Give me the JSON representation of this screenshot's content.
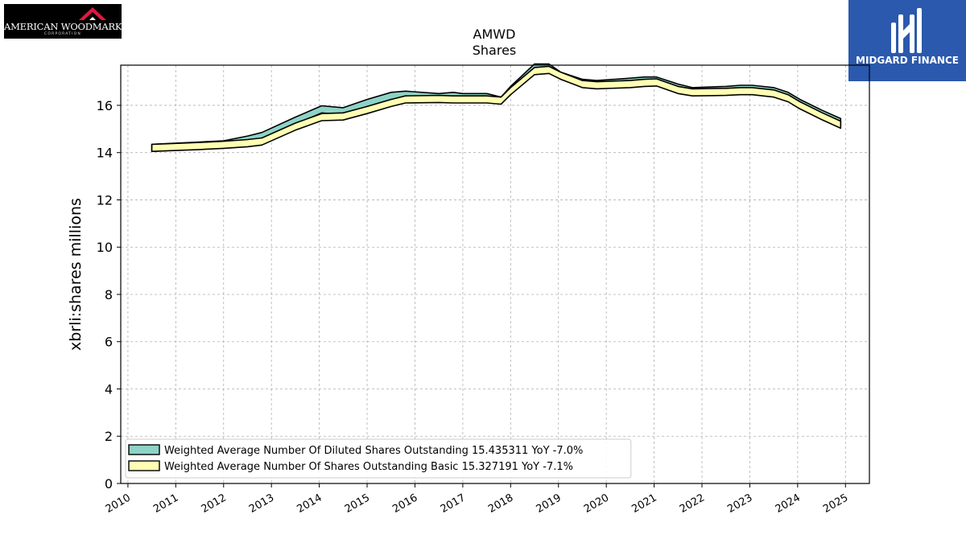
{
  "logos": {
    "left": {
      "text": "AMERICAN WOODMARK",
      "subtext": "CORPORATION",
      "icon": "house-roof-icon"
    },
    "right": {
      "text": "MIDGARD FINANCE",
      "icon": "midgard-m-icon"
    }
  },
  "chart_data": {
    "type": "area",
    "title": "AMWD",
    "subtitle": "Shares",
    "xlabel": "",
    "ylabel": "xbrli:shares millions",
    "xlim": [
      2009.85,
      2025.5
    ],
    "ylim": [
      0,
      17.7
    ],
    "x_ticks": [
      "2010",
      "2011",
      "2012",
      "2013",
      "2014",
      "2015",
      "2016",
      "2017",
      "2018",
      "2019",
      "2020",
      "2021",
      "2022",
      "2023",
      "2024",
      "2025"
    ],
    "y_ticks": [
      "0",
      "2",
      "4",
      "6",
      "8",
      "10",
      "12",
      "14",
      "16"
    ],
    "grid": true,
    "legend_position": "lower-left",
    "series": [
      {
        "name": "Weighted Average Number Of Diluted Shares Outstanding  15.435311 YoY -7.0%",
        "color": "#8dd3c7",
        "x": [
          2010.5,
          2011.5,
          2012.0,
          2012.5,
          2012.8,
          2013.5,
          2014.05,
          2014.5,
          2015.0,
          2015.5,
          2015.8,
          2016.5,
          2016.8,
          2017.0,
          2017.5,
          2017.8,
          2018.0,
          2018.5,
          2018.8,
          2019.05,
          2019.5,
          2019.8,
          2020.5,
          2020.8,
          2021.05,
          2021.5,
          2021.8,
          2022.5,
          2022.8,
          2023.05,
          2023.5,
          2023.8,
          2024.05,
          2024.5,
          2024.9
        ],
        "y": [
          14.35,
          14.45,
          14.5,
          14.7,
          14.85,
          15.5,
          15.98,
          15.9,
          16.25,
          16.55,
          16.6,
          16.5,
          16.55,
          16.5,
          16.5,
          16.35,
          16.8,
          17.75,
          17.75,
          17.4,
          17.1,
          17.05,
          17.15,
          17.2,
          17.2,
          16.9,
          16.75,
          16.8,
          16.85,
          16.85,
          16.75,
          16.55,
          16.25,
          15.8,
          15.44
        ]
      },
      {
        "name": "Weighted Average Number Of Shares Outstanding Basic  15.327191 YoY -7.1%",
        "color": "#ffffb3",
        "x": [
          2010.5,
          2011.5,
          2012.0,
          2012.5,
          2012.8,
          2013.5,
          2014.05,
          2014.5,
          2015.0,
          2015.5,
          2015.8,
          2016.5,
          2016.8,
          2017.0,
          2017.5,
          2017.8,
          2018.0,
          2018.5,
          2018.8,
          2019.05,
          2019.5,
          2019.8,
          2020.5,
          2020.8,
          2021.05,
          2021.5,
          2021.8,
          2022.5,
          2022.8,
          2023.05,
          2023.5,
          2023.8,
          2024.05,
          2024.5,
          2024.9
        ],
        "y": [
          14.35,
          14.43,
          14.48,
          14.55,
          14.62,
          15.25,
          15.65,
          15.68,
          15.95,
          16.25,
          16.4,
          16.42,
          16.4,
          16.4,
          16.4,
          16.35,
          16.75,
          17.6,
          17.65,
          17.4,
          17.05,
          17.0,
          17.05,
          17.1,
          17.12,
          16.8,
          16.7,
          16.72,
          16.75,
          16.75,
          16.65,
          16.45,
          16.15,
          15.7,
          15.33
        ]
      }
    ]
  }
}
